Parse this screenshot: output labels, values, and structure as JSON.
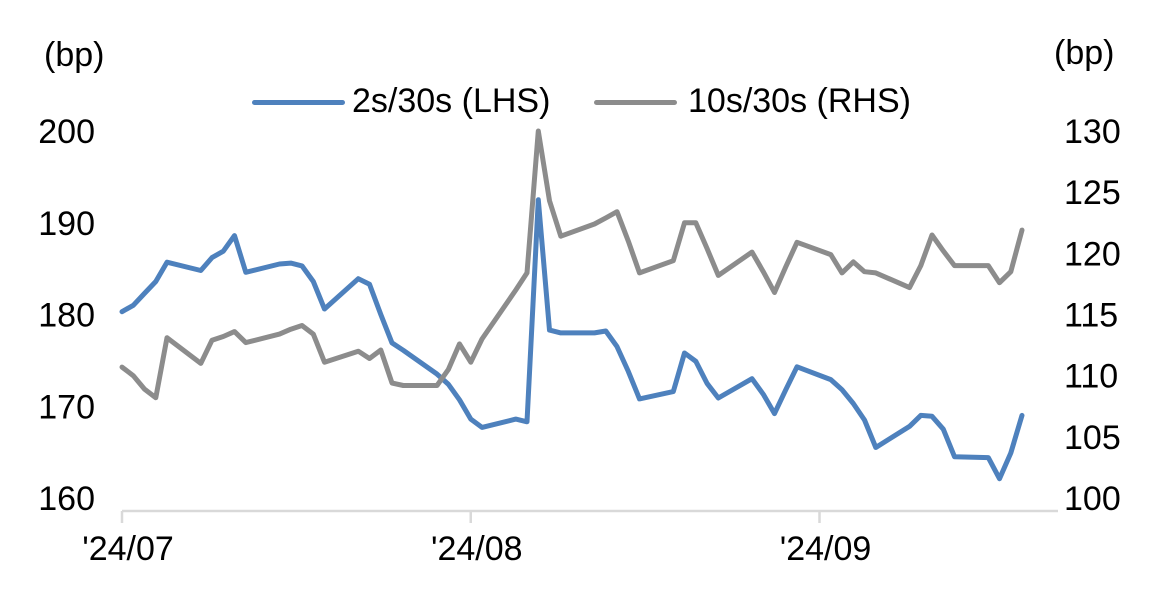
{
  "header": {
    "left_unit": "(bp)",
    "right_unit": "(bp)"
  },
  "legend": {
    "items": [
      {
        "label": "2s/30s (LHS)",
        "color": "#4E81BD"
      },
      {
        "label": "10s/30s (RHS)",
        "color": "#8C8C8C"
      }
    ]
  },
  "chart_data": {
    "type": "line",
    "dual_axis": true,
    "title": "",
    "x_axis": {
      "tick_labels": [
        "'24/07",
        "'24/08",
        "'24/09"
      ],
      "tick_day_offsets": [
        0,
        31,
        62
      ],
      "note": "daily series starting 2024/07/01, weekdays only; offsets are calendar days from first point"
    },
    "left_axis": {
      "unit": "(bp)",
      "min": 160,
      "max": 200,
      "step": 10,
      "tick_labels": [
        "200",
        "190",
        "180",
        "170",
        "160"
      ]
    },
    "right_axis": {
      "unit": "(bp)",
      "min": 100,
      "max": 130,
      "step": 5,
      "tick_labels": [
        "130",
        "125",
        "120",
        "115",
        "110",
        "105",
        "100"
      ]
    },
    "series": [
      {
        "name": "2s/30s (LHS)",
        "axis": "left",
        "color": "#4E81BD",
        "stroke_width": 5,
        "day_offsets": [
          0,
          1,
          2,
          3,
          4,
          7,
          8,
          9,
          10,
          11,
          14,
          15,
          16,
          17,
          18,
          21,
          22,
          23,
          24,
          25,
          28,
          29,
          30,
          31,
          32,
          35,
          36,
          37,
          38,
          39,
          42,
          43,
          44,
          45,
          46,
          49,
          50,
          51,
          52,
          53,
          56,
          57,
          58,
          59,
          60,
          63,
          64,
          65,
          66,
          67,
          70,
          71,
          72,
          73,
          74,
          77,
          78,
          79,
          80
        ],
        "values": [
          180.3,
          181.0,
          182.3,
          183.6,
          185.7,
          184.8,
          186.2,
          186.9,
          188.6,
          184.6,
          185.5,
          185.6,
          185.3,
          183.6,
          180.6,
          183.9,
          183.3,
          180.0,
          176.9,
          176.1,
          173.5,
          172.4,
          170.7,
          168.6,
          167.7,
          168.6,
          168.3,
          192.5,
          178.3,
          178.0,
          178.0,
          178.2,
          176.5,
          173.8,
          170.8,
          171.6,
          175.8,
          174.9,
          172.5,
          170.9,
          173.0,
          171.3,
          169.2,
          171.8,
          174.3,
          172.9,
          171.8,
          170.3,
          168.5,
          165.5,
          167.8,
          169.0,
          168.9,
          167.5,
          164.5,
          164.4,
          162.1,
          164.9,
          169.0
        ]
      },
      {
        "name": "10s/30s (RHS)",
        "axis": "right",
        "color": "#8C8C8C",
        "stroke_width": 5,
        "day_offsets": [
          0,
          1,
          2,
          3,
          4,
          7,
          8,
          9,
          10,
          11,
          14,
          15,
          16,
          17,
          18,
          21,
          22,
          23,
          24,
          25,
          28,
          29,
          30,
          31,
          32,
          35,
          36,
          37,
          38,
          39,
          42,
          43,
          44,
          45,
          46,
          49,
          50,
          51,
          52,
          53,
          56,
          57,
          58,
          59,
          60,
          63,
          64,
          65,
          66,
          67,
          70,
          71,
          72,
          73,
          74,
          77,
          78,
          79,
          80
        ],
        "values": [
          110.7,
          110.0,
          108.9,
          108.2,
          113.1,
          111.0,
          112.9,
          113.2,
          113.6,
          112.7,
          113.4,
          113.8,
          114.1,
          113.4,
          111.1,
          112.0,
          111.4,
          112.1,
          109.4,
          109.2,
          109.2,
          110.5,
          112.6,
          111.1,
          113.0,
          117.0,
          118.4,
          130.0,
          124.3,
          121.4,
          122.4,
          122.9,
          123.4,
          121.0,
          118.4,
          119.4,
          122.5,
          122.5,
          120.4,
          118.2,
          120.1,
          118.5,
          116.8,
          118.9,
          120.9,
          119.9,
          118.4,
          119.3,
          118.5,
          118.4,
          117.2,
          119.0,
          121.5,
          120.2,
          119.0,
          119.0,
          117.6,
          118.5,
          121.9
        ]
      }
    ],
    "axis_line_color": "#D9D9D9"
  }
}
